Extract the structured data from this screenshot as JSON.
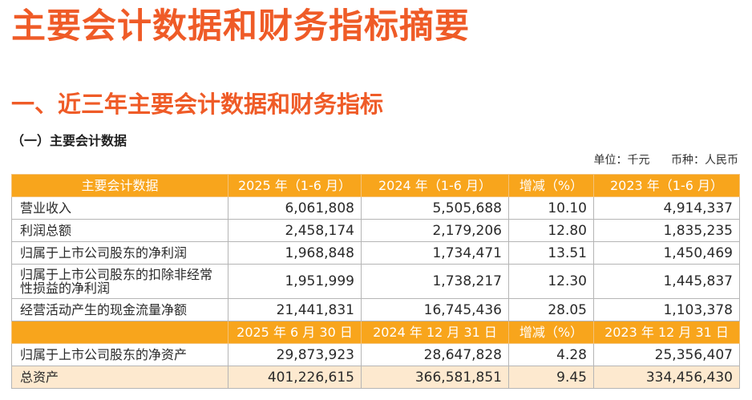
{
  "page": {
    "title": "主要会计数据和财务指标摘要",
    "section": "一、近三年主要会计数据和财务指标",
    "subsection": "（一）主要会计数据",
    "unit_label": "单位：千元",
    "currency_label": "币种：人民币"
  },
  "table": {
    "header1": [
      "主要会计数据",
      "2025 年（1-6 月）",
      "2024 年（1-6 月）",
      "增减（%）",
      "2023 年（1-6 月）"
    ],
    "rows1": [
      {
        "label": "营业收入",
        "values": [
          "6,061,808",
          "5,505,688",
          "10.10",
          "4,914,337"
        ]
      },
      {
        "label": "利润总额",
        "values": [
          "2,458,174",
          "2,179,206",
          "12.80",
          "1,835,235"
        ]
      },
      {
        "label": "归属于上市公司股东的净利润",
        "values": [
          "1,968,848",
          "1,734,471",
          "13.51",
          "1,450,469"
        ]
      },
      {
        "label": "归属于上市公司股东的扣除非经常性损益的净利润",
        "values": [
          "1,951,999",
          "1,738,217",
          "12.30",
          "1,445,837"
        ]
      },
      {
        "label": "经营活动产生的现金流量净额",
        "values": [
          "21,441,831",
          "16,745,436",
          "28.05",
          "1,103,378"
        ]
      }
    ],
    "header2": [
      "",
      "2025 年 6 月 30 日",
      "2024 年 12 月 31 日",
      "增减（%）",
      "2023 年 12 月 31 日"
    ],
    "rows2": [
      {
        "label": "归属于上市公司股东的净资产",
        "values": [
          "29,873,923",
          "28,647,828",
          "4.28",
          "25,356,407"
        ]
      },
      {
        "label": "总资产",
        "values": [
          "401,226,615",
          "366,581,851",
          "9.45",
          "334,456,430"
        ]
      }
    ]
  }
}
